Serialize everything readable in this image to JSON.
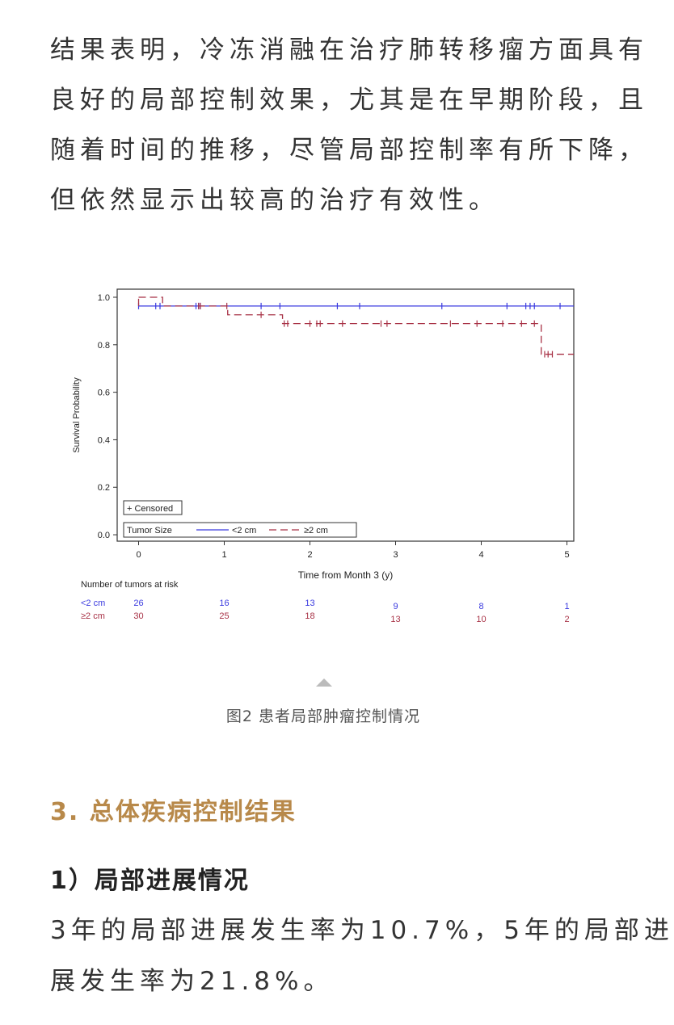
{
  "intro": {
    "lines": [
      "结果表明，冷冻消融在治疗肺转移瘤方面具有",
      "良好的局部控制效果，尤其是在早期阶段，且",
      "随着时间的推移，尽管局部控制率有所下降，",
      "但依然显示出较高的治疗有效性。"
    ]
  },
  "figure": {
    "caption": "图2  患者局部肿瘤控制情况"
  },
  "section": {
    "heading": "3. 总体疾病控制结果",
    "subheading": "1）局部进展情况",
    "lines": [
      "3年的局部进展发生率为10.7%，5年的局部进",
      "展发生率为21.8%。"
    ]
  },
  "chart_data": {
    "type": "line",
    "subtype": "kaplan-meier step",
    "xlabel": "Time from Month 3 (y)",
    "ylabel": "Survival Probability",
    "xlim": [
      -0.25,
      5.08
    ],
    "ylim": [
      -0.027,
      1.034
    ],
    "xticks": [
      "0",
      "1",
      "2",
      "3",
      "4",
      "5"
    ],
    "yticks": [
      "0.0",
      "0.2",
      "0.4",
      "0.6",
      "0.8",
      "1.0"
    ],
    "grid": false,
    "legend": {
      "censored_label": "+ Censored",
      "title": "Tumor Size",
      "placement": "bottom-left"
    },
    "series": [
      {
        "name": "<2 cm",
        "color": "#3a3adf",
        "dash": false,
        "steps": [
          [
            0,
            0.963
          ],
          [
            5.08,
            0.963
          ]
        ],
        "censored": [
          0,
          0.2,
          0.25,
          0.67,
          0.7,
          0.72,
          1.43,
          1.65,
          2.32,
          2.58,
          3.54,
          4.3,
          4.52,
          4.57,
          4.62,
          4.92
        ]
      },
      {
        "name": "≥2 cm",
        "color": "#a83246",
        "dash": true,
        "steps": [
          [
            0,
            1.0
          ],
          [
            0.28,
            0.963
          ],
          [
            1.04,
            0.926
          ],
          [
            1.68,
            0.889
          ],
          [
            4.7,
            0.76
          ],
          [
            5.08,
            0.76
          ]
        ],
        "censored": [
          0.7,
          0.72,
          1.03,
          1.43,
          1.7,
          1.74,
          2.0,
          2.08,
          2.12,
          2.38,
          2.83,
          2.9,
          3.64,
          3.95,
          4.25,
          4.47,
          4.62,
          4.74,
          4.78,
          4.83
        ]
      }
    ],
    "risk_table": {
      "title": "Number of tumors at risk",
      "times": [
        0,
        1,
        2,
        3,
        4,
        5
      ],
      "rows": [
        {
          "label": "<2 cm",
          "values": [
            "26",
            "16",
            "13",
            "9",
            "8",
            "1"
          ]
        },
        {
          "label": "≥2 cm",
          "values": [
            "30",
            "25",
            "18",
            "13",
            "10",
            "2"
          ]
        }
      ]
    }
  }
}
